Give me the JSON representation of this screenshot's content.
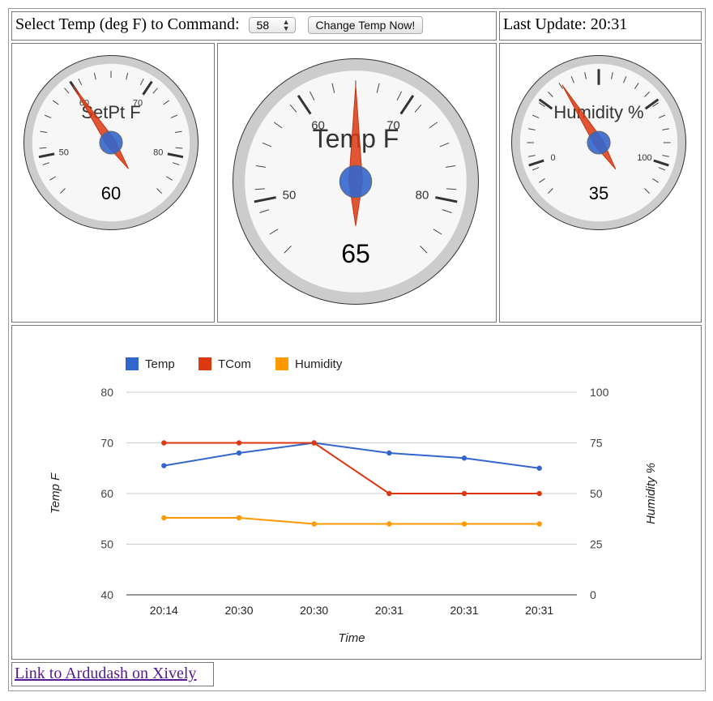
{
  "command": {
    "label": "Select Temp (deg F) to Command:",
    "select_value": "58",
    "button_label": "Change Temp Now!"
  },
  "update": {
    "label": "Last Update: 20:31"
  },
  "gauges": [
    {
      "title": "SetPt F",
      "value": 60,
      "display": "60",
      "min": 45,
      "max": 85,
      "ticks": [
        "50",
        "60",
        "70",
        "80"
      ],
      "needle_color": "#dc3912",
      "hub_color": "#3366cc"
    },
    {
      "title": "Temp F",
      "value": 65,
      "display": "65",
      "min": 45,
      "max": 85,
      "ticks": [
        "50",
        "60",
        "70",
        "80"
      ],
      "needle_color": "#dc3912",
      "hub_color": "#3366cc"
    },
    {
      "title": "Humidity %",
      "value": 35,
      "display": "35",
      "min": -12.5,
      "max": 112.5,
      "ticks": [
        "0",
        "100"
      ],
      "needle_color": "#dc3912",
      "hub_color": "#3366cc"
    }
  ],
  "chart_data": {
    "type": "line",
    "categories": [
      "20:14",
      "20:30",
      "20:30",
      "20:31",
      "20:31",
      "20:31"
    ],
    "series": [
      {
        "name": "Temp",
        "axis": "left",
        "color": "#3366cc",
        "values": [
          65.5,
          68,
          70,
          68,
          67,
          65
        ]
      },
      {
        "name": "TCom",
        "axis": "left",
        "color": "#dc3912",
        "values": [
          70,
          70,
          70,
          60,
          60,
          60
        ]
      },
      {
        "name": "Humidity",
        "axis": "right",
        "color": "#ff9900",
        "values": [
          38,
          38,
          35,
          35,
          35,
          35
        ]
      }
    ],
    "xlabel": "Time",
    "ylabel": "Temp F",
    "y2label": "Humidity %",
    "ylim": [
      40,
      80
    ],
    "y2lim": [
      0,
      100
    ],
    "yticks": [
      "40",
      "50",
      "60",
      "70",
      "80"
    ],
    "y2ticks": [
      "0",
      "25",
      "50",
      "75",
      "100"
    ],
    "legend": "top-left",
    "grid": true
  },
  "footer": {
    "link_text": "Link to Ardudash on Xively"
  }
}
